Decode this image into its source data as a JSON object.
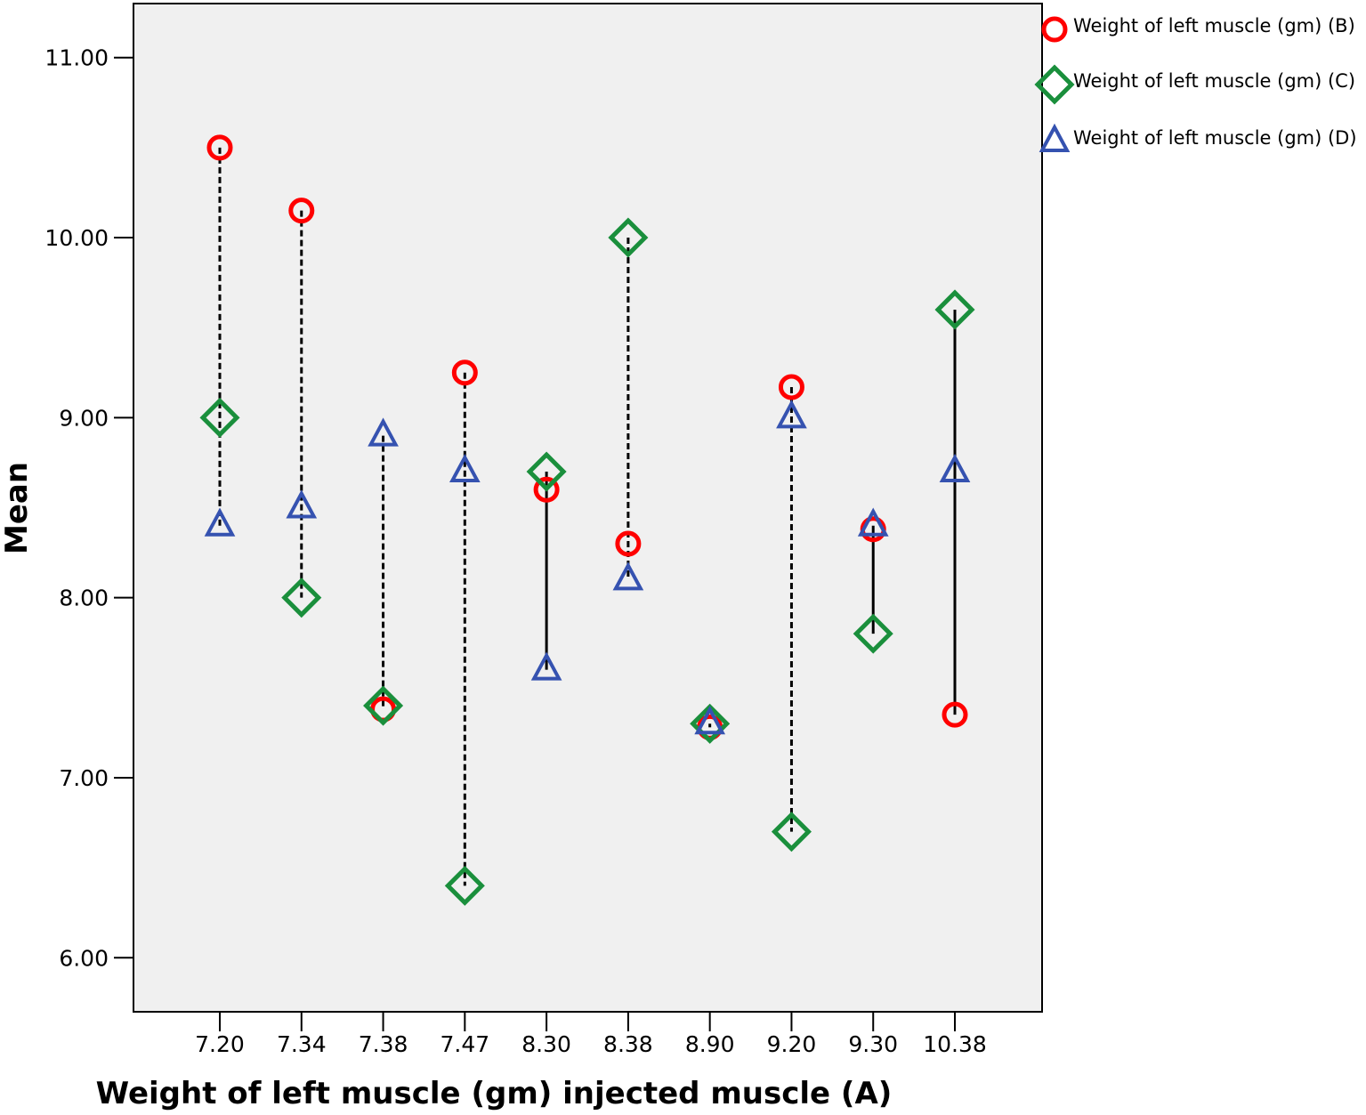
{
  "chart_data": {
    "type": "scatter",
    "title": "",
    "xlabel": "Weight of left muscle (gm) injected muscle (A)",
    "ylabel": "Mean",
    "categories": [
      "7.20",
      "7.34",
      "7.38",
      "7.47",
      "8.30",
      "8.38",
      "8.90",
      "9.20",
      "9.30",
      "10.38"
    ],
    "y_ticks": [
      "6.00",
      "7.00",
      "8.00",
      "9.00",
      "10.00",
      "11.00"
    ],
    "ylim": [
      5.7,
      11.3
    ],
    "grid": false,
    "legend_position": "top-right, outside plot",
    "plot_background": "#f0f0f0",
    "series": [
      {
        "name": "Weight of left muscle (gm) (B)",
        "marker": "circle",
        "color": "#ff0000",
        "values": [
          10.5,
          10.15,
          7.38,
          9.25,
          8.6,
          8.3,
          7.28,
          9.17,
          8.38,
          7.35
        ]
      },
      {
        "name": "Weight of left muscle (gm) (C)",
        "marker": "diamond",
        "color": "#1a8f3c",
        "values": [
          9.0,
          8.0,
          7.4,
          6.4,
          8.7,
          10.0,
          7.3,
          6.7,
          7.8,
          9.6
        ]
      },
      {
        "name": "Weight of left muscle (gm) (D)",
        "marker": "triangle",
        "color": "#3552b0",
        "values": [
          8.4,
          8.5,
          8.9,
          8.7,
          7.6,
          8.1,
          7.3,
          9.0,
          8.4,
          8.7
        ]
      }
    ],
    "range_lines": {
      "color": "#000000",
      "styles": [
        "dashed",
        "dashed",
        "dashed",
        "dashed",
        "solid",
        "dashed",
        "dashed",
        "dashed",
        "solid",
        "solid"
      ]
    }
  }
}
